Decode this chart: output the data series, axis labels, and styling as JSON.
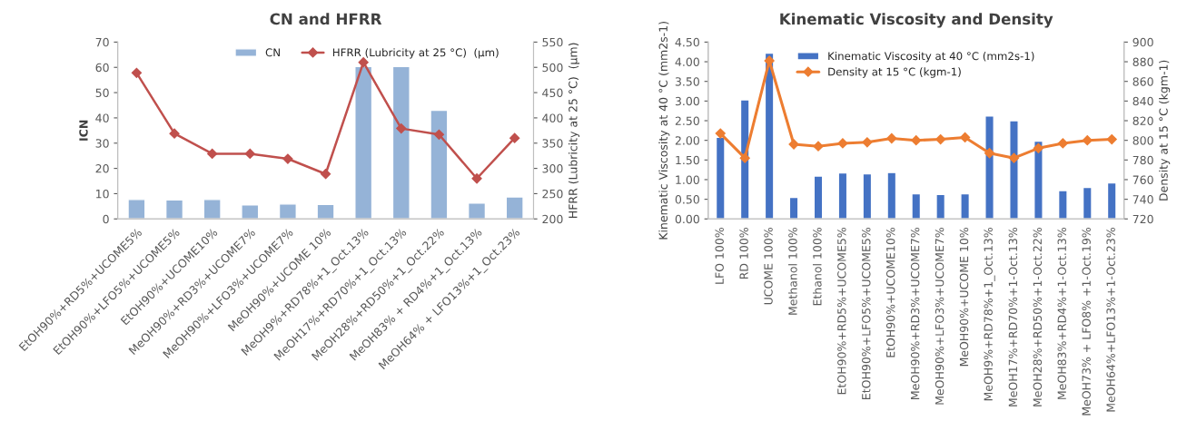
{
  "chart_data": [
    {
      "type": "bar",
      "title": "CN and HFRR",
      "ylabel": "ICN",
      "y2label": "HFRR (Lubricity at 25 °C)  (µm)",
      "categories": [
        "EtOH90%+RD5%+UCOME5%",
        "EtOH90%+LFO5%+UCOME5%",
        "EtOH90%+UCOME10%",
        "MeOH90%+RD3%+UCOME7%",
        "MeOH90%+LFO3%+UCOME7%",
        "MeOH90%+UCOME 10%",
        "MeOH9%+RD78%+1_Oct.13%",
        "MeOH17%+RD70%+1_Oct.13%",
        "MeOH28%+RD50%+1_Oct.22%",
        "MeOH83% + RD4%+1_Oct.13%",
        "MeOH64% + LFO13%+1_Oct.23%"
      ],
      "series": [
        {
          "name": "CN",
          "color": "#95b3d7",
          "values": [
            7.7,
            7.5,
            7.7,
            5.6,
            5.9,
            5.7,
            60.3,
            60.3,
            43,
            6.3,
            8.7
          ]
        },
        {
          "name": "HFRR (Lubricity at 25 °C)  (µm)",
          "type": "line",
          "axis": "y2",
          "color": "#c0504d",
          "marker": "diamond",
          "values": [
            489,
            369,
            329,
            329,
            319,
            289,
            510,
            379,
            367,
            280,
            360
          ]
        }
      ],
      "ylim": [
        0,
        70
      ],
      "yticks": [
        0,
        10,
        20,
        30,
        40,
        50,
        60,
        70
      ],
      "y2lim": [
        200,
        550
      ],
      "y2ticks": [
        200,
        250,
        300,
        350,
        400,
        450,
        500,
        550
      ],
      "legend": "top",
      "grid": false
    },
    {
      "type": "bar",
      "title": "Kinematic Viscosity and Density",
      "ylabel": "Kinematic Viscosity at 40 °C (mm2s-1)",
      "y2label": "Density at 15 °C (kgm-1)",
      "categories": [
        "LFO 100%",
        "RD 100%",
        "UCOME 100%",
        "Methanol 100%",
        "Ethanol 100%",
        "EtOH90%+RD5%+UCOME5%",
        "EtOH90%+LFO5%+UCOME5%",
        "EtOH90%+UCOME10%",
        "MeOH90%+RD3%+UCOME7%",
        "MeOH90%+LFO3%+UCOME7%",
        "MeOH90%+UCOME 10%",
        "MeOH9%+RD78%+1_Oct.13%",
        "MeOH17%+RD70%+1-Oct.13%",
        "MeOH28%+RD50%+1-Oct.22%",
        "MeOH83%+RD4%+1-Oct.13%",
        "MeOH73% + LFO8% +1-Oct.19%",
        "MeOH64%+LFO13%+1-Oct.23%"
      ],
      "series": [
        {
          "name": "Kinematic Viscosity at 40 °C (mm2s-1)",
          "color": "#4472c4",
          "values": [
            2.08,
            3.03,
            4.22,
            0.55,
            1.09,
            1.17,
            1.15,
            1.18,
            0.64,
            0.62,
            0.64,
            2.62,
            2.5,
            1.98,
            0.72,
            0.8,
            0.92
          ]
        },
        {
          "name": "Density at 15 °C (kgm-1)",
          "type": "line",
          "axis": "y2",
          "color": "#ed7d31",
          "marker": "diamond",
          "values": [
            807,
            782,
            881,
            796,
            794,
            797,
            798,
            802,
            800,
            801,
            803,
            787,
            782,
            792,
            797,
            800,
            801
          ]
        }
      ],
      "ylim": [
        0,
        4.5
      ],
      "yticks": [
        {
          "value": 0,
          "label": "0.00"
        },
        {
          "value": 0.5,
          "label": "0.50"
        },
        {
          "value": 1,
          "label": "1.00"
        },
        {
          "value": 1.5,
          "label": "1.50"
        },
        {
          "value": 2,
          "label": "2.00"
        },
        {
          "value": 2.5,
          "label": "2.50"
        },
        {
          "value": 3,
          "label": "3.00"
        },
        {
          "value": 3.5,
          "label": "3.50"
        },
        {
          "value": 4,
          "label": "4.00"
        },
        {
          "value": 4.5,
          "label": "4.50"
        }
      ],
      "y2lim": [
        720,
        900
      ],
      "y2ticks": [
        720,
        740,
        760,
        780,
        800,
        820,
        840,
        860,
        880,
        900
      ],
      "legend": "top",
      "grid": false
    }
  ]
}
